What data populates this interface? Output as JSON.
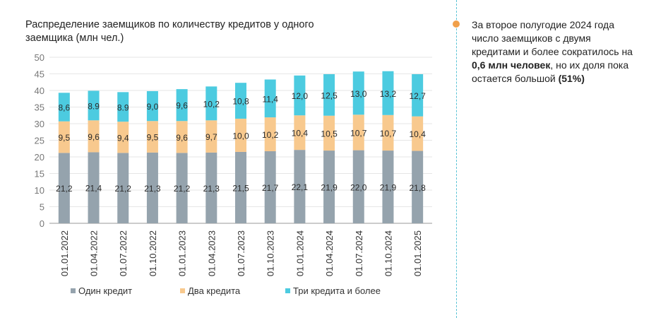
{
  "chart_data": {
    "type": "bar",
    "stacked": true,
    "title": "Распределение заемщиков по количеству кредитов у одного заемщика (млн чел.)",
    "categories": [
      "01.01.2022",
      "01.04.2022",
      "01.07.2022",
      "01.10.2022",
      "01.01.2023",
      "01.04.2023",
      "01.07.2023",
      "01.10.2023",
      "01.01.2024",
      "01.04.2024",
      "01.07.2024",
      "01.10.2024",
      "01.01.2025"
    ],
    "ylim": [
      0,
      50
    ],
    "yticks": [
      0,
      5,
      10,
      15,
      20,
      25,
      30,
      35,
      40,
      45,
      50
    ],
    "grid": true,
    "legend_position": "bottom",
    "series": [
      {
        "name": "Один кредит",
        "color": "#95a3ad",
        "values": [
          21.2,
          21.4,
          21.2,
          21.3,
          21.2,
          21.3,
          21.5,
          21.7,
          22.1,
          21.9,
          22.0,
          21.9,
          21.8
        ],
        "labels": [
          "21,2",
          "21,4",
          "21,2",
          "21,3",
          "21,2",
          "21,3",
          "21,5",
          "21,7",
          "22,1",
          "21,9",
          "22,0",
          "21,9",
          "21,8"
        ]
      },
      {
        "name": "Два кредита",
        "color": "#f8c98e",
        "values": [
          9.5,
          9.6,
          9.4,
          9.5,
          9.6,
          9.7,
          10.0,
          10.2,
          10.4,
          10.5,
          10.7,
          10.7,
          10.4
        ],
        "labels": [
          "9,5",
          "9,6",
          "9,4",
          "9,5",
          "9,6",
          "9,7",
          "10,0",
          "10,2",
          "10,4",
          "10,5",
          "10,7",
          "10,7",
          "10,4"
        ]
      },
      {
        "name": "Три кредита и более",
        "color": "#4ccbe0",
        "values": [
          8.6,
          8.9,
          8.9,
          9.0,
          9.6,
          10.2,
          10.8,
          11.4,
          12.0,
          12.5,
          13.0,
          13.2,
          12.7
        ],
        "labels": [
          "8,6",
          "8.9",
          "8.9",
          "9,0",
          "9,6",
          "10,2",
          "10,8",
          "11,4",
          "12,0",
          "12,5",
          "13,0",
          "13,2",
          "12,7"
        ]
      }
    ]
  },
  "note": {
    "text_1": "За второе полугодие 2024 года число заемщиков с двумя кредитами и более сократилось на ",
    "bold_1": "0,6 млн человек",
    "text_2": ", но их доля пока остается большой ",
    "bold_2": "(51%)",
    "colors": {
      "dot": "#f0a04b",
      "divider": "#5bc3d6"
    }
  }
}
